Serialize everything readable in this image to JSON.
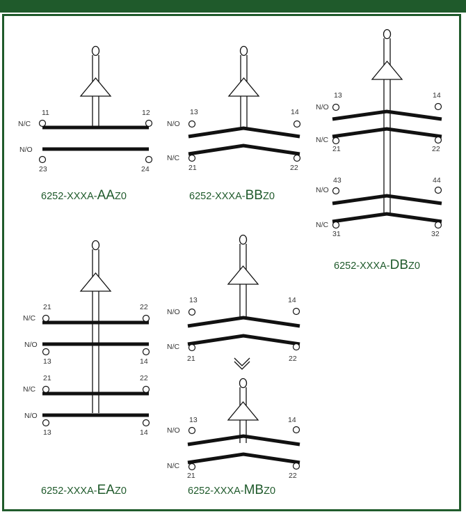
{
  "colors": {
    "frame": "#1f5a2b",
    "caption": "#1f5a2b",
    "contact": "#111111",
    "text": "#333333"
  },
  "diagrams": [
    {
      "id": "aa",
      "caption": {
        "prefix": "6252-XXXA-",
        "code": "AA",
        "suffix": "Z0"
      },
      "contacts": [
        {
          "type": "N/C",
          "top_left": "11",
          "top_right": "12",
          "bottom_left": "",
          "bottom_right": ""
        },
        {
          "type": "N/O",
          "top_left": "",
          "top_right": "",
          "bottom_left": "23",
          "bottom_right": "24"
        }
      ]
    },
    {
      "id": "bb",
      "caption": {
        "prefix": "6252-XXXA-",
        "code": "BB",
        "suffix": "Z0"
      },
      "contacts": [
        {
          "type": "N/O",
          "top_left": "13",
          "top_right": "14",
          "bottom_left": "",
          "bottom_right": ""
        },
        {
          "type": "N/C",
          "top_left": "",
          "top_right": "",
          "bottom_left": "21",
          "bottom_right": "22"
        }
      ]
    },
    {
      "id": "db",
      "caption": {
        "prefix": "6252-XXXA-",
        "code": "DB",
        "suffix": "Z0"
      },
      "contacts": [
        {
          "type": "N/O",
          "top_left": "13",
          "top_right": "14",
          "bottom_left": "",
          "bottom_right": ""
        },
        {
          "type": "N/C",
          "top_left": "",
          "top_right": "",
          "bottom_left": "21",
          "bottom_right": "22"
        },
        {
          "type": "N/O",
          "top_left": "43",
          "top_right": "44",
          "bottom_left": "",
          "bottom_right": ""
        },
        {
          "type": "N/C",
          "top_left": "",
          "top_right": "",
          "bottom_left": "31",
          "bottom_right": "32"
        }
      ]
    },
    {
      "id": "ea",
      "caption": {
        "prefix": "6252-XXXA-",
        "code": "EA",
        "suffix": "Z0"
      },
      "contacts": [
        {
          "type": "N/C",
          "top_left": "21",
          "top_right": "22",
          "bottom_left": "",
          "bottom_right": ""
        },
        {
          "type": "N/O",
          "top_left": "",
          "top_right": "",
          "bottom_left": "13",
          "bottom_right": "14"
        },
        {
          "type": "N/C",
          "top_left": "21",
          "top_right": "22",
          "bottom_left": "",
          "bottom_right": ""
        },
        {
          "type": "N/O",
          "top_left": "",
          "top_right": "",
          "bottom_left": "13",
          "bottom_right": "14"
        }
      ]
    },
    {
      "id": "mb",
      "caption": {
        "prefix": "6252-XXXA-",
        "code": "MB",
        "suffix": "Z0"
      },
      "contacts": [
        {
          "type": "N/O",
          "top_left": "13",
          "top_right": "14",
          "bottom_left": "",
          "bottom_right": ""
        },
        {
          "type": "N/C",
          "top_left": "",
          "top_right": "",
          "bottom_left": "21",
          "bottom_right": "22"
        },
        {
          "type": "N/O",
          "top_left": "13",
          "top_right": "14",
          "bottom_left": "",
          "bottom_right": ""
        },
        {
          "type": "N/C",
          "top_left": "",
          "top_right": "",
          "bottom_left": "21",
          "bottom_right": "22"
        }
      ]
    }
  ]
}
